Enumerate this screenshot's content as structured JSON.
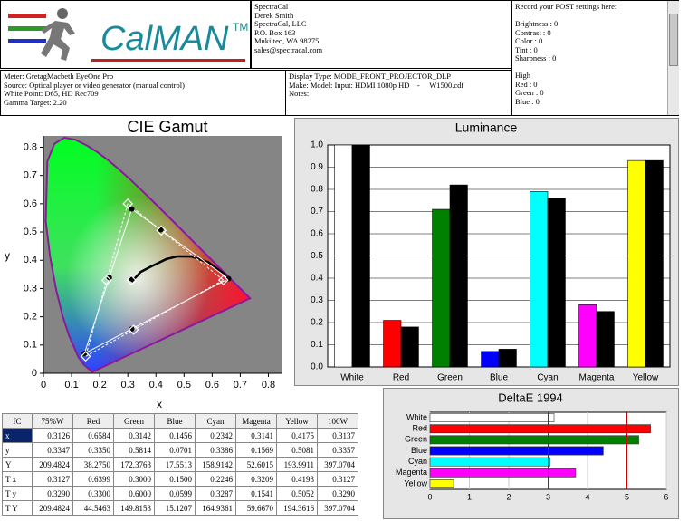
{
  "logo": {
    "name": "CalMAN",
    "tm": "TM"
  },
  "header": {
    "contact": [
      "SpectraCal",
      "Derek Smith",
      "SpectraCal, LLC",
      "P.O. Box 163",
      "Mukilteo, WA 98275",
      "sales@spectracal.com"
    ],
    "settings_title": "Record your POST settings here:",
    "settings": [
      "Brightness : 0",
      "Contrast : 0",
      "Color : 0",
      "Tint : 0",
      "Sharpness : 0"
    ],
    "settings_high": [
      "High",
      "Red : 0",
      "Green : 0",
      "Blue : 0"
    ],
    "meter_info": [
      "Meter: GretagMacbeth EyeOne Pro",
      "Source: Optical player or video generator (manual control)",
      "White Point: D65, HD Rec709",
      "Gamma Target: 2.20"
    ],
    "display_info": [
      "Display Type: MODE_FRONT_PROJECTOR_DLP",
      "Make: Model: Input: HDMI 1080p HD    -     W1500.cdf",
      "Notes:"
    ]
  },
  "chart_data": [
    {
      "type": "scatter",
      "title": "CIE Gamut",
      "x_label": "x",
      "y_label": "y",
      "xlim": [
        0,
        0.85
      ],
      "ylim": [
        0,
        0.84
      ],
      "xticks": [
        0,
        0.1,
        0.2,
        0.3,
        0.4,
        0.5,
        0.6,
        0.7,
        0.8
      ],
      "yticks": [
        0,
        0.1,
        0.2,
        0.3,
        0.4,
        0.5,
        0.6,
        0.7,
        0.8
      ],
      "series": [
        {
          "marker": "circle",
          "color": "#000000",
          "x": [
            0.6584,
            0.3142,
            0.1456,
            0.2342,
            0.3141,
            0.4175,
            0.3126
          ],
          "y": [
            0.335,
            0.5814,
            0.0701,
            0.3386,
            0.1569,
            0.5081,
            0.3347
          ]
        },
        {
          "marker": "diamond",
          "color": "#ffffff",
          "x": [
            0.6399,
            0.3,
            0.15,
            0.2246,
            0.3209,
            0.4193,
            0.3127
          ],
          "y": [
            0.33,
            0.6,
            0.0599,
            0.3287,
            0.1541,
            0.5052,
            0.329
          ]
        }
      ]
    },
    {
      "type": "bar",
      "title": "Luminance",
      "categories": [
        "White",
        "Red",
        "Green",
        "Blue",
        "Cyan",
        "Magenta",
        "Yellow"
      ],
      "ylim": [
        0,
        1
      ],
      "yticks": [
        {
          "value": 0,
          "label": "0.0"
        },
        0.1,
        0.2,
        0.3,
        0.4,
        0.5,
        0.6,
        0.7,
        0.8,
        0.9,
        {
          "value": 1,
          "label": "1.0"
        }
      ],
      "grid": true,
      "series": [
        {
          "colors": [
            "#ffffff",
            "#ff0000",
            "#008000",
            "#0000ff",
            "#00ffff",
            "#ff00ff",
            "#ffff00"
          ],
          "values": [
            1,
            0.21,
            0.71,
            0.07,
            0.79,
            0.28,
            0.93
          ]
        },
        {
          "color": "#000000",
          "values": [
            1,
            0.18,
            0.82,
            0.08,
            0.76,
            0.25,
            0.93
          ]
        }
      ]
    },
    {
      "type": "barh",
      "title": "DeltaE 1994",
      "categories": [
        "White",
        "Red",
        "Green",
        "Blue",
        "Cyan",
        "Magenta",
        "Yellow"
      ],
      "values": [
        3.15,
        5.6,
        5.3,
        4.4,
        3.05,
        3.7,
        0.6
      ],
      "colors": [
        "#ffffff",
        "#ff0000",
        "#008000",
        "#0000ff",
        "#00ffff",
        "#ff00ff",
        "#ffff00"
      ],
      "xlim": [
        0,
        6
      ],
      "xticks": [
        0,
        1,
        2,
        3,
        4,
        5,
        6
      ],
      "grid": true,
      "reference_lines": [
        3,
        5
      ],
      "reference_color": "#cc0000"
    }
  ],
  "table": {
    "header": [
      "fC",
      "75%W",
      "Red",
      "Green",
      "Blue",
      "Cyan",
      "Magenta",
      "Yellow",
      "100W"
    ],
    "rows": [
      [
        "x",
        "0.3126",
        "0.6584",
        "0.3142",
        "0.1456",
        "0.2342",
        "0.3141",
        "0.4175",
        "0.3137"
      ],
      [
        "y",
        "0.3347",
        "0.3350",
        "0.5814",
        "0.0701",
        "0.3386",
        "0.1569",
        "0.5081",
        "0.3357"
      ],
      [
        "Y",
        "209.4824",
        "38.2750",
        "172.3763",
        "17.5513",
        "158.9142",
        "52.6015",
        "193.9911",
        "397.0704"
      ],
      [
        "T x",
        "0.3127",
        "0.6399",
        "0.3000",
        "0.1500",
        "0.2246",
        "0.3209",
        "0.4193",
        "0.3127"
      ],
      [
        "T y",
        "0.3290",
        "0.3300",
        "0.6000",
        "0.0599",
        "0.3287",
        "0.1541",
        "0.5052",
        "0.3290"
      ],
      [
        "T Y",
        "209.4824",
        "44.5463",
        "149.8153",
        "15.1207",
        "164.9361",
        "59.6670",
        "194.3616",
        "397.0704"
      ]
    ]
  }
}
